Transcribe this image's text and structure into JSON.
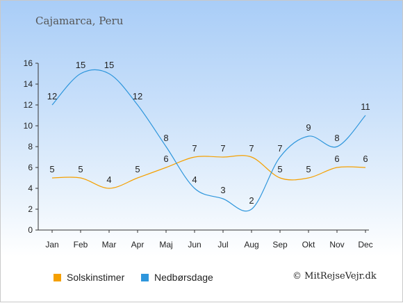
{
  "title": "Cajamarca, Peru",
  "credit": "© MitRejseVejr.dk",
  "colors": {
    "sun": "#f5a000",
    "rain": "#2e96dc"
  },
  "chart_data": {
    "type": "line",
    "categories": [
      "Jan",
      "Feb",
      "Mar",
      "Apr",
      "Maj",
      "Jun",
      "Jul",
      "Aug",
      "Sep",
      "Okt",
      "Nov",
      "Dec"
    ],
    "series": [
      {
        "name": "Solskinstimer",
        "values": [
          5,
          5,
          4,
          5,
          6,
          7,
          7,
          7,
          5,
          5,
          6,
          6
        ]
      },
      {
        "name": "Nedbørsdage",
        "values": [
          12,
          15,
          15,
          12,
          8,
          4,
          3,
          2,
          7,
          9,
          8,
          11
        ]
      }
    ],
    "yticks": [
      0,
      2,
      4,
      6,
      8,
      10,
      12,
      14,
      16
    ],
    "ylim": [
      0,
      16
    ],
    "legend": "bottom-left",
    "grid": false
  }
}
